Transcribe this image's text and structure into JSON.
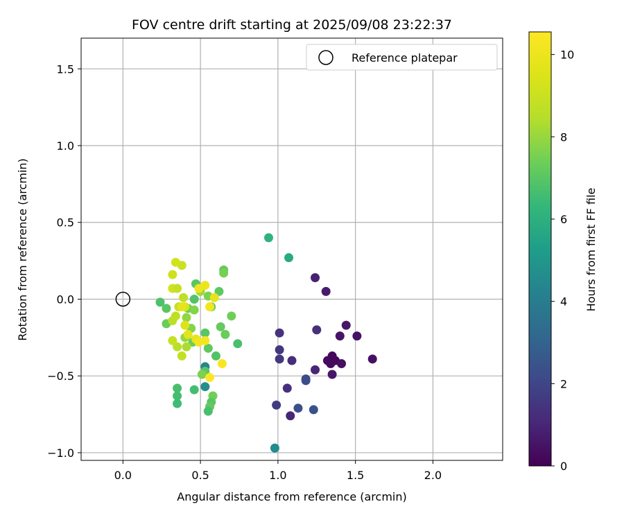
{
  "chart_data": {
    "type": "scatter",
    "title": "FOV centre drift starting at 2025/09/08 23:22:37",
    "xlabel": "Angular distance from reference (arcmin)",
    "ylabel": "Rotation from reference (arcmin)",
    "xlim": [
      -0.27,
      2.45
    ],
    "ylim": [
      -1.05,
      1.7
    ],
    "xticks": [
      0.0,
      0.5,
      1.0,
      1.5,
      2.0
    ],
    "xtick_labels": [
      "0.0",
      "0.5",
      "1.0",
      "1.5",
      "2.0"
    ],
    "yticks": [
      -1.0,
      -0.5,
      0.0,
      0.5,
      1.0,
      1.5
    ],
    "ytick_labels": [
      "−1.0",
      "−0.5",
      "0.0",
      "0.5",
      "1.0",
      "1.5"
    ],
    "grid": true,
    "legend": {
      "position": "top-right",
      "entries": [
        "Reference platepar"
      ]
    },
    "reference_point": {
      "x": 0.0,
      "y": 0.0,
      "label": "Reference platepar"
    },
    "colorbar": {
      "label": "Hours from first FF file",
      "range": [
        0,
        10.55
      ],
      "ticks": [
        0,
        2,
        4,
        6,
        8,
        10
      ],
      "tick_labels": [
        "0",
        "2",
        "4",
        "6",
        "8",
        "10"
      ],
      "colormap": "viridis"
    },
    "points": [
      {
        "x": 1.24,
        "y": 0.14,
        "h": 0.9
      },
      {
        "x": 1.31,
        "y": 0.05,
        "h": 0.7
      },
      {
        "x": 1.44,
        "y": -0.17,
        "h": 0.6
      },
      {
        "x": 1.51,
        "y": -0.24,
        "h": 0.5
      },
      {
        "x": 1.4,
        "y": -0.24,
        "h": 0.5
      },
      {
        "x": 1.25,
        "y": -0.2,
        "h": 1.3
      },
      {
        "x": 1.61,
        "y": -0.39,
        "h": 0.4
      },
      {
        "x": 1.32,
        "y": -0.4,
        "h": 0.3
      },
      {
        "x": 1.35,
        "y": -0.37,
        "h": 0.2
      },
      {
        "x": 1.37,
        "y": -0.4,
        "h": 0.2
      },
      {
        "x": 1.34,
        "y": -0.42,
        "h": 0.3
      },
      {
        "x": 1.41,
        "y": -0.42,
        "h": 0.4
      },
      {
        "x": 1.35,
        "y": -0.49,
        "h": 0.6
      },
      {
        "x": 1.24,
        "y": -0.46,
        "h": 1.0
      },
      {
        "x": 1.01,
        "y": -0.22,
        "h": 1.4
      },
      {
        "x": 1.01,
        "y": -0.33,
        "h": 1.5
      },
      {
        "x": 1.01,
        "y": -0.39,
        "h": 1.5
      },
      {
        "x": 1.09,
        "y": -0.4,
        "h": 1.2
      },
      {
        "x": 1.18,
        "y": -0.52,
        "h": 2.0
      },
      {
        "x": 1.18,
        "y": -0.53,
        "h": 2.2
      },
      {
        "x": 1.06,
        "y": -0.58,
        "h": 1.3
      },
      {
        "x": 0.99,
        "y": -0.69,
        "h": 1.7
      },
      {
        "x": 1.13,
        "y": -0.71,
        "h": 2.3
      },
      {
        "x": 1.23,
        "y": -0.72,
        "h": 2.4
      },
      {
        "x": 1.08,
        "y": -0.76,
        "h": 1.0
      },
      {
        "x": 0.98,
        "y": -0.97,
        "h": 4.6
      },
      {
        "x": 0.94,
        "y": 0.4,
        "h": 6.1
      },
      {
        "x": 1.07,
        "y": 0.27,
        "h": 5.8
      },
      {
        "x": 0.53,
        "y": -0.44,
        "h": 4.4
      },
      {
        "x": 0.53,
        "y": -0.57,
        "h": 4.7
      },
      {
        "x": 0.24,
        "y": -0.02,
        "h": 6.8
      },
      {
        "x": 0.28,
        "y": -0.06,
        "h": 7.0
      },
      {
        "x": 0.28,
        "y": -0.16,
        "h": 7.3
      },
      {
        "x": 0.65,
        "y": 0.19,
        "h": 7.2
      },
      {
        "x": 0.65,
        "y": 0.17,
        "h": 7.5
      },
      {
        "x": 0.62,
        "y": 0.05,
        "h": 7.1
      },
      {
        "x": 0.47,
        "y": 0.1,
        "h": 7.0
      },
      {
        "x": 0.5,
        "y": 0.05,
        "h": 8.1
      },
      {
        "x": 0.55,
        "y": 0.02,
        "h": 7.6
      },
      {
        "x": 0.57,
        "y": -0.05,
        "h": 7.3
      },
      {
        "x": 0.7,
        "y": -0.11,
        "h": 7.4
      },
      {
        "x": 0.63,
        "y": -0.18,
        "h": 7.2
      },
      {
        "x": 0.66,
        "y": -0.23,
        "h": 7.3
      },
      {
        "x": 0.74,
        "y": -0.29,
        "h": 6.7
      },
      {
        "x": 0.53,
        "y": -0.22,
        "h": 7.0
      },
      {
        "x": 0.55,
        "y": -0.32,
        "h": 7.1
      },
      {
        "x": 0.6,
        "y": -0.37,
        "h": 6.9
      },
      {
        "x": 0.53,
        "y": -0.47,
        "h": 7.0
      },
      {
        "x": 0.51,
        "y": -0.49,
        "h": 7.6
      },
      {
        "x": 0.46,
        "y": -0.59,
        "h": 6.6
      },
      {
        "x": 0.58,
        "y": -0.63,
        "h": 7.4
      },
      {
        "x": 0.57,
        "y": -0.67,
        "h": 7.0
      },
      {
        "x": 0.56,
        "y": -0.7,
        "h": 7.2
      },
      {
        "x": 0.55,
        "y": -0.73,
        "h": 6.7
      },
      {
        "x": 0.35,
        "y": -0.58,
        "h": 6.7
      },
      {
        "x": 0.35,
        "y": -0.63,
        "h": 6.6
      },
      {
        "x": 0.35,
        "y": -0.68,
        "h": 6.5
      },
      {
        "x": 0.46,
        "y": 0.0,
        "h": 6.9
      },
      {
        "x": 0.42,
        "y": -0.06,
        "h": 7.4
      },
      {
        "x": 0.46,
        "y": -0.07,
        "h": 7.7
      },
      {
        "x": 0.41,
        "y": -0.12,
        "h": 7.9
      },
      {
        "x": 0.44,
        "y": -0.19,
        "h": 7.7
      },
      {
        "x": 0.45,
        "y": -0.28,
        "h": 7.3
      },
      {
        "x": 0.4,
        "y": -0.25,
        "h": 8.0
      },
      {
        "x": 0.41,
        "y": -0.31,
        "h": 8.3
      },
      {
        "x": 0.35,
        "y": -0.31,
        "h": 8.6
      },
      {
        "x": 0.38,
        "y": -0.37,
        "h": 8.8
      },
      {
        "x": 0.32,
        "y": -0.27,
        "h": 8.9
      },
      {
        "x": 0.32,
        "y": -0.14,
        "h": 8.6
      },
      {
        "x": 0.34,
        "y": -0.11,
        "h": 8.7
      },
      {
        "x": 0.36,
        "y": -0.05,
        "h": 8.9
      },
      {
        "x": 0.39,
        "y": 0.01,
        "h": 8.7
      },
      {
        "x": 0.38,
        "y": 0.22,
        "h": 9.0
      },
      {
        "x": 0.34,
        "y": 0.24,
        "h": 9.2
      },
      {
        "x": 0.32,
        "y": 0.16,
        "h": 9.1
      },
      {
        "x": 0.32,
        "y": 0.07,
        "h": 9.2
      },
      {
        "x": 0.35,
        "y": 0.07,
        "h": 8.8
      },
      {
        "x": 0.4,
        "y": -0.05,
        "h": 9.4
      },
      {
        "x": 0.38,
        "y": -0.05,
        "h": 9.8
      },
      {
        "x": 0.4,
        "y": -0.17,
        "h": 9.5
      },
      {
        "x": 0.42,
        "y": -0.23,
        "h": 9.7
      },
      {
        "x": 0.47,
        "y": -0.26,
        "h": 9.8
      },
      {
        "x": 0.49,
        "y": -0.28,
        "h": 10.2
      },
      {
        "x": 0.53,
        "y": -0.27,
        "h": 10.3
      },
      {
        "x": 0.49,
        "y": 0.07,
        "h": 10.1
      },
      {
        "x": 0.53,
        "y": 0.09,
        "h": 10.0
      },
      {
        "x": 0.59,
        "y": 0.01,
        "h": 9.8
      },
      {
        "x": 0.56,
        "y": -0.05,
        "h": 10.2
      },
      {
        "x": 0.64,
        "y": -0.42,
        "h": 10.4
      },
      {
        "x": 0.56,
        "y": -0.51,
        "h": 10.5
      }
    ]
  }
}
